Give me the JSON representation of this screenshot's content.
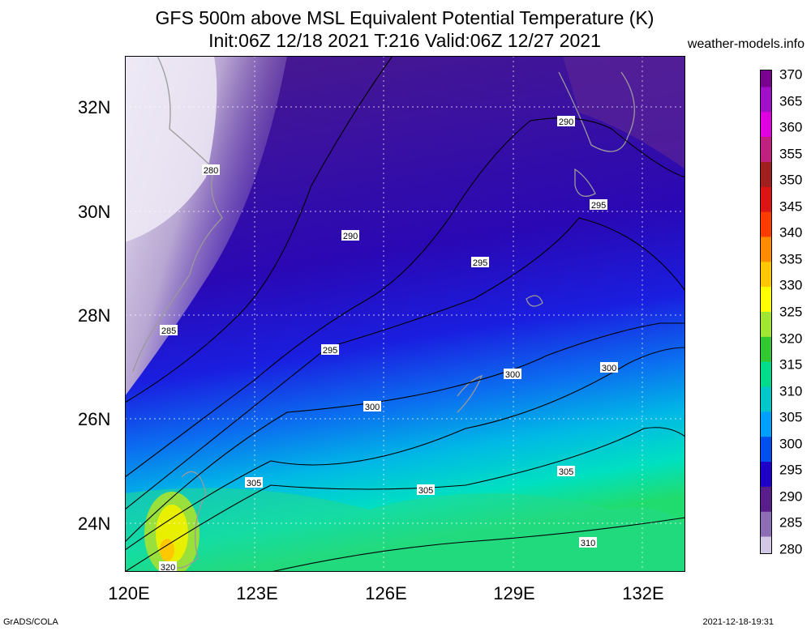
{
  "title": {
    "line1": "GFS 500m above MSL Equivalent Potential Temperature (K)",
    "line2": "Init:06Z 12/18 2021 T:216 Valid:06Z 12/27 2021",
    "site": "weather-models.info"
  },
  "map": {
    "lat_labels": [
      "32N",
      "30N",
      "28N",
      "26N",
      "24N"
    ],
    "lon_labels": [
      "120E",
      "123E",
      "126E",
      "129E",
      "132E"
    ],
    "contour_labels": [
      "280",
      "285",
      "290",
      "290",
      "295",
      "295",
      "295",
      "300",
      "300",
      "300",
      "305",
      "305",
      "305",
      "310",
      "320"
    ]
  },
  "colorbar": {
    "labels": [
      "370",
      "365",
      "360",
      "355",
      "350",
      "345",
      "340",
      "335",
      "330",
      "325",
      "320",
      "315",
      "310",
      "305",
      "300",
      "295",
      "290",
      "285",
      "280"
    ],
    "colors": [
      "#7a0090",
      "#a010c8",
      "#e000e0",
      "#c02080",
      "#a02020",
      "#dc1414",
      "#ff3c00",
      "#ff8c00",
      "#ffc800",
      "#ffff00",
      "#a0e632",
      "#32c832",
      "#00dc8c",
      "#00c8c8",
      "#00a0ff",
      "#0050f0",
      "#1e00c8",
      "#5a1e8c",
      "#8c6eb4",
      "#d2c8e6"
    ]
  },
  "footer": {
    "left": "GrADS/COLA",
    "right": "2021-12-18-19:31"
  }
}
